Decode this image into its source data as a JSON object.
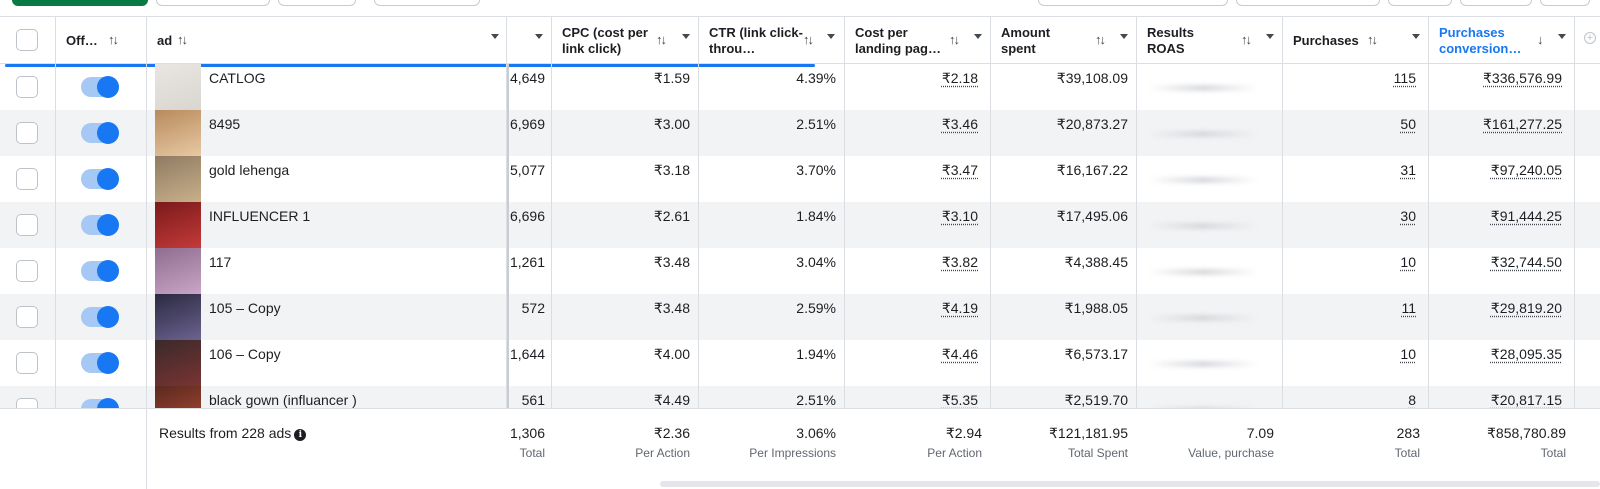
{
  "header": {
    "off": "Off…",
    "ad": "ad",
    "cpc": "CPC (cost per link click)",
    "ctr": "CTR (link click-throu…",
    "cplp": "Cost per landing pag…",
    "amount": "Amount spent",
    "roas": "Results ROAS",
    "purchases": "Purchases",
    "conv": "Purchases conversion…"
  },
  "icons": {
    "sort": "sort-arrows-icon",
    "sort_down": "arrow-down-icon",
    "caret": "chevron-down-icon",
    "info": "info-icon",
    "add_column": "plus-circle-icon",
    "toggle": "toggle-on-icon"
  },
  "colors": {
    "accent": "#1877f2",
    "primary_button": "#0a7a43",
    "conv_header": "#1877f2"
  },
  "rows": [
    {
      "name": "CATLOG",
      "partial": "4,649",
      "cpc": "₹1.59",
      "ctr": "4.39%",
      "cplp": "₹2.18",
      "amount": "₹39,108.09",
      "purchases": "115",
      "conv": "₹336,576.99"
    },
    {
      "name": "8495",
      "partial": "6,969",
      "cpc": "₹3.00",
      "ctr": "2.51%",
      "cplp": "₹3.46",
      "amount": "₹20,873.27",
      "purchases": "50",
      "conv": "₹161,277.25"
    },
    {
      "name": "gold lehenga",
      "partial": "5,077",
      "cpc": "₹3.18",
      "ctr": "3.70%",
      "cplp": "₹3.47",
      "amount": "₹16,167.22",
      "purchases": "31",
      "conv": "₹97,240.05"
    },
    {
      "name": "INFLUENCER 1",
      "partial": "6,696",
      "cpc": "₹2.61",
      "ctr": "1.84%",
      "cplp": "₹3.10",
      "amount": "₹17,495.06",
      "purchases": "30",
      "conv": "₹91,444.25"
    },
    {
      "name": "117",
      "partial": "1,261",
      "cpc": "₹3.48",
      "ctr": "3.04%",
      "cplp": "₹3.82",
      "amount": "₹4,388.45",
      "purchases": "10",
      "conv": "₹32,744.50"
    },
    {
      "name": "105 – Copy",
      "partial": "572",
      "cpc": "₹3.48",
      "ctr": "2.59%",
      "cplp": "₹4.19",
      "amount": "₹1,988.05",
      "purchases": "11",
      "conv": "₹29,819.20"
    },
    {
      "name": "106 – Copy",
      "partial": "1,644",
      "cpc": "₹4.00",
      "ctr": "1.94%",
      "cplp": "₹4.46",
      "amount": "₹6,573.17",
      "purchases": "10",
      "conv": "₹28,095.35"
    },
    {
      "name": "black gown (influancer )",
      "partial": "561",
      "cpc": "₹4.49",
      "ctr": "2.51%",
      "cplp": "₹5.35",
      "amount": "₹2,519.70",
      "purchases": "8",
      "conv": "₹20,817.15"
    }
  ],
  "footer": {
    "results_label": "Results from 228 ads",
    "partial": "1,306",
    "partial_sub": "Total",
    "cpc": "₹2.36",
    "cpc_sub": "Per Action",
    "ctr": "3.06%",
    "ctr_sub": "Per Impressions",
    "cplp": "₹2.94",
    "cplp_sub": "Per Action",
    "amount": "₹121,181.95",
    "amount_sub": "Total Spent",
    "roas": "7.09",
    "roas_sub": "Value, purchase",
    "purchases": "283",
    "purchases_sub": "Total",
    "conv": "₹858,780.89",
    "conv_sub": "Total"
  }
}
